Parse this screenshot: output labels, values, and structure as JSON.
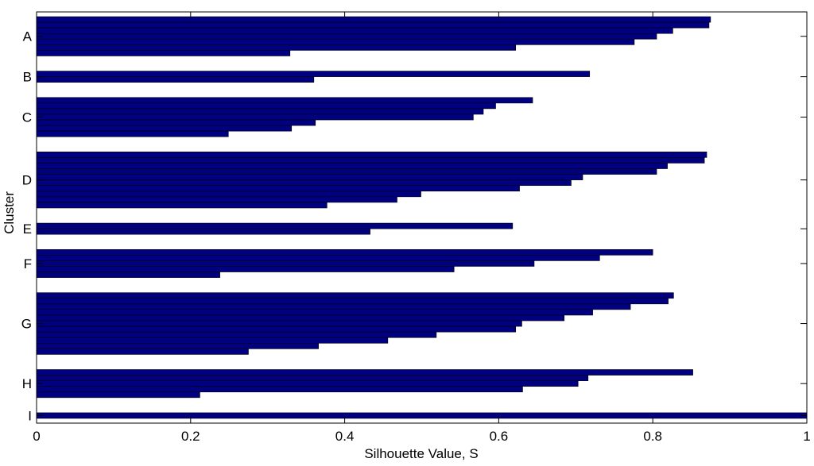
{
  "chart_data": {
    "type": "bar",
    "orientation": "horizontal",
    "title": "",
    "xlabel": "Silhouette Value, S",
    "ylabel": "Cluster",
    "xlim": [
      0,
      1
    ],
    "xticks": [
      "0",
      "0.2",
      "0.4",
      "0.6",
      "0.8",
      "1"
    ],
    "grid": false,
    "bar_color": "#000080",
    "edge_color": "#000000",
    "clusters": [
      {
        "label": "A",
        "values": [
          0.875,
          0.873,
          0.826,
          0.805,
          0.776,
          0.622,
          0.329
        ]
      },
      {
        "label": "B",
        "values": [
          0.718,
          0.36
        ]
      },
      {
        "label": "C",
        "values": [
          0.644,
          0.596,
          0.58,
          0.567,
          0.362,
          0.331,
          0.249
        ]
      },
      {
        "label": "D",
        "values": [
          0.87,
          0.867,
          0.819,
          0.805,
          0.709,
          0.694,
          0.627,
          0.499,
          0.468,
          0.377
        ]
      },
      {
        "label": "E",
        "values": [
          0.618,
          0.433
        ]
      },
      {
        "label": "F",
        "values": [
          0.8,
          0.731,
          0.646,
          0.542,
          0.238
        ]
      },
      {
        "label": "G",
        "values": [
          0.827,
          0.82,
          0.771,
          0.722,
          0.685,
          0.63,
          0.622,
          0.519,
          0.456,
          0.366,
          0.275
        ]
      },
      {
        "label": "H",
        "values": [
          0.852,
          0.716,
          0.703,
          0.631,
          0.212
        ]
      },
      {
        "label": "I",
        "values": [
          1.0
        ]
      }
    ]
  }
}
